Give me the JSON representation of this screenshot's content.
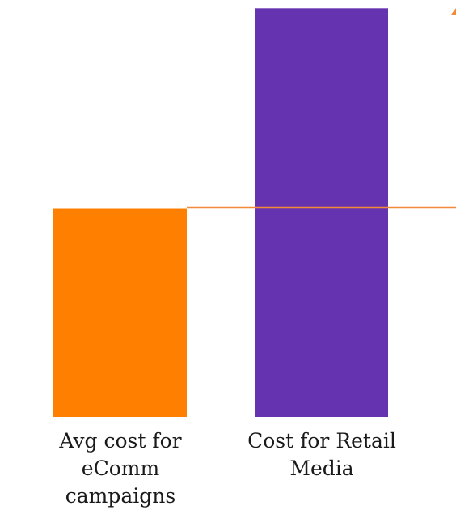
{
  "chart_data": {
    "type": "bar",
    "categories": [
      "Avg cost for eComm campaigns",
      "Cost for Retail Media"
    ],
    "values": [
      100,
      196
    ],
    "colors": [
      "#ff8000",
      "#6633b0"
    ],
    "reference_line": {
      "value": 100,
      "color": "#f28a3a"
    },
    "ylim": [
      0,
      200
    ],
    "title": "",
    "xlabel": "",
    "ylabel": "",
    "grid": false,
    "legend": "none"
  }
}
